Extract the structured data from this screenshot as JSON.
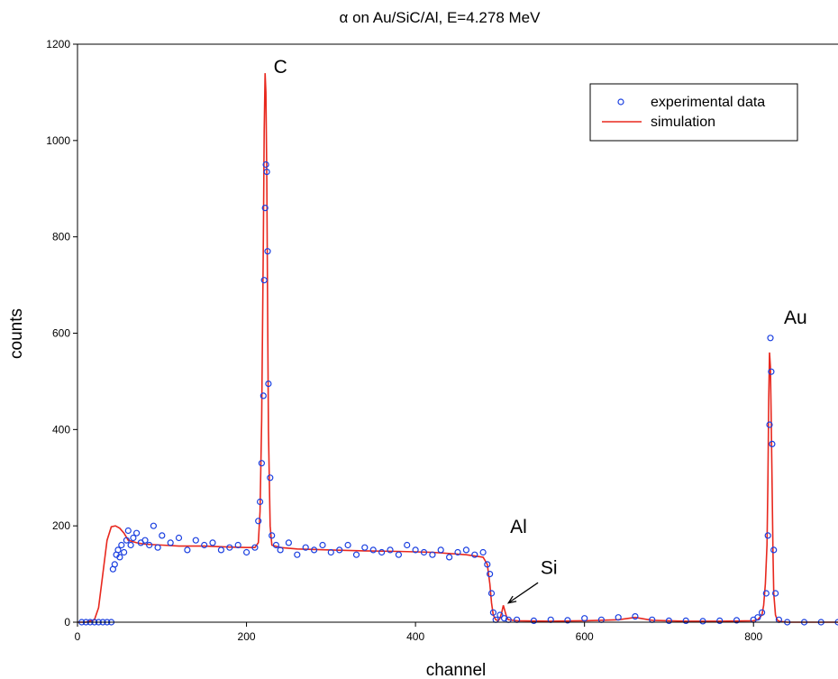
{
  "chart_data": {
    "type": "scatter",
    "title": "α on Au/SiC/Al, E=4.278 MeV",
    "xlabel": "channel",
    "ylabel": "counts",
    "xlim": [
      0,
      900
    ],
    "ylim": [
      0,
      1200
    ],
    "xticks": [
      "0",
      "200",
      "400",
      "600",
      "800"
    ],
    "yticks": [
      "0",
      "200",
      "400",
      "600",
      "800",
      "1000",
      "1200"
    ],
    "grid": false,
    "legend": {
      "placement": "top-right",
      "entries": [
        "experimental data",
        "simulation"
      ]
    },
    "colors": {
      "experimental": "#1a3fe0",
      "simulation": "#e8281e"
    },
    "series": [
      {
        "name": "experimental data",
        "marker": "open-circle",
        "x": [
          5,
          10,
          15,
          20,
          25,
          30,
          35,
          40,
          42,
          44,
          46,
          48,
          50,
          52,
          55,
          58,
          60,
          63,
          66,
          70,
          75,
          80,
          85,
          90,
          95,
          100,
          110,
          120,
          130,
          140,
          150,
          160,
          170,
          180,
          190,
          200,
          210,
          214,
          216,
          218,
          220,
          221,
          222,
          223,
          224,
          225,
          226,
          228,
          230,
          235,
          240,
          250,
          260,
          270,
          280,
          290,
          300,
          310,
          320,
          330,
          340,
          350,
          360,
          370,
          380,
          390,
          400,
          410,
          420,
          430,
          440,
          450,
          460,
          470,
          480,
          485,
          488,
          490,
          492,
          495,
          500,
          505,
          510,
          520,
          540,
          560,
          580,
          600,
          620,
          640,
          660,
          680,
          700,
          720,
          740,
          760,
          780,
          800,
          805,
          810,
          815,
          817,
          819,
          820,
          821,
          822,
          824,
          826,
          830,
          840,
          860,
          880,
          900
        ],
        "y": [
          0,
          0,
          0,
          0,
          0,
          0,
          0,
          0,
          110,
          120,
          140,
          150,
          135,
          160,
          145,
          170,
          190,
          160,
          175,
          185,
          165,
          170,
          160,
          200,
          155,
          180,
          165,
          175,
          150,
          170,
          160,
          165,
          150,
          155,
          160,
          145,
          155,
          210,
          250,
          330,
          470,
          710,
          860,
          950,
          935,
          770,
          495,
          300,
          180,
          160,
          150,
          165,
          140,
          155,
          150,
          160,
          145,
          150,
          160,
          140,
          155,
          150,
          145,
          150,
          140,
          160,
          150,
          145,
          140,
          150,
          135,
          145,
          150,
          140,
          145,
          120,
          100,
          60,
          20,
          5,
          15,
          8,
          5,
          5,
          3,
          5,
          4,
          8,
          5,
          10,
          12,
          5,
          3,
          3,
          2,
          3,
          4,
          5,
          10,
          20,
          60,
          180,
          410,
          590,
          520,
          370,
          150,
          60,
          5,
          0,
          0,
          0,
          0
        ]
      },
      {
        "name": "simulation",
        "marker": "line",
        "x": [
          0,
          10,
          20,
          25,
          30,
          35,
          40,
          45,
          50,
          55,
          60,
          70,
          80,
          100,
          120,
          150,
          180,
          200,
          210,
          214,
          216,
          218,
          220,
          221,
          222,
          223,
          224,
          225,
          226,
          228,
          230,
          240,
          260,
          300,
          340,
          380,
          420,
          460,
          480,
          485,
          488,
          490,
          492,
          495,
          498,
          500,
          502,
          504,
          506,
          508,
          510,
          520,
          560,
          600,
          640,
          660,
          680,
          720,
          760,
          800,
          805,
          810,
          812,
          814,
          816,
          817,
          818,
          819,
          820,
          821,
          822,
          823,
          824,
          826,
          828,
          830,
          840,
          900
        ],
        "y": [
          0,
          0,
          5,
          30,
          100,
          170,
          198,
          200,
          195,
          185,
          170,
          165,
          162,
          160,
          158,
          158,
          156,
          155,
          155,
          165,
          230,
          420,
          800,
          1020,
          1140,
          1100,
          920,
          650,
          400,
          200,
          160,
          155,
          152,
          150,
          148,
          147,
          145,
          140,
          135,
          120,
          80,
          40,
          15,
          5,
          3,
          8,
          20,
          35,
          22,
          10,
          5,
          3,
          2,
          3,
          5,
          10,
          4,
          2,
          2,
          3,
          5,
          15,
          35,
          80,
          160,
          290,
          460,
          560,
          530,
          420,
          280,
          150,
          60,
          15,
          5,
          2,
          0,
          0
        ]
      }
    ],
    "annotations": [
      {
        "text": "C",
        "x": 232,
        "y": 1140
      },
      {
        "text": "Au",
        "x": 836,
        "y": 620
      },
      {
        "text": "Al",
        "x": 512,
        "y": 185
      },
      {
        "text": "Si",
        "x": 548,
        "y": 100
      }
    ]
  }
}
